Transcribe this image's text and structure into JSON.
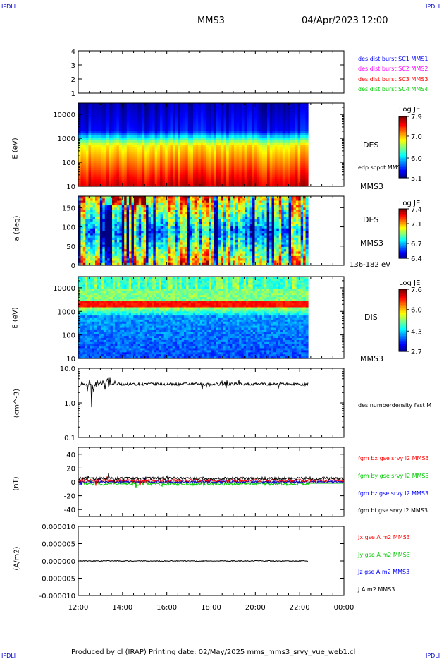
{
  "header": {
    "corner_tl": "IPDLI",
    "corner_tr": "IPDLI",
    "corner_bl": "IPDLI",
    "corner_br": "IPDLI",
    "spacecraft": "MMS3",
    "datetime": "04/Apr/2023 12:00"
  },
  "footer": {
    "produced": "Produced by cl (IRAP)   Printing date: 02/May/2025   mms_mms3_srvy_vue_web1.cl"
  },
  "colors": {
    "c1": "#0000ff",
    "c2": "#ff00ff",
    "c3": "#ff0000",
    "c4": "#00cc00",
    "bx": "#ff0000",
    "by": "#00cc00",
    "bz": "#0000ff",
    "bt": "#000000"
  },
  "chart_data": {
    "type": "multi-panel time series",
    "x_tick_labels": [
      "12:00",
      "14:00",
      "16:00",
      "18:00",
      "20:00",
      "22:00",
      "00:00"
    ],
    "data_end": "22:25",
    "panels": [
      {
        "id": "burst",
        "type": "line",
        "ylim": [
          1,
          4
        ],
        "ytick_labels": [
          "4",
          "3",
          "2",
          "1"
        ],
        "legend": [
          "des dist burst SC1 MMS1",
          "des dist burst SC2 MMS2",
          "des dist burst SC3 MMS3",
          "des dist burst SC4 MMS4"
        ]
      },
      {
        "id": "des_energy",
        "type": "heatmap",
        "ylabel": "E (eV)",
        "yscale": "log",
        "ylim": [
          10,
          30000
        ],
        "ytick_labels": [
          "10000",
          "1000",
          "100",
          "10"
        ],
        "side_labels": [
          "DES",
          "edp scpot MMS3",
          "MMS3"
        ],
        "colorbar": {
          "title": "Log JE",
          "ticks": [
            "7.9",
            "7.0",
            "6.0",
            "5.1"
          ],
          "range": [
            5.1,
            7.9
          ]
        }
      },
      {
        "id": "des_pitch",
        "type": "heatmap",
        "ylabel": "a (deg)",
        "ylim": [
          0,
          180
        ],
        "ytick_labels": [
          "150",
          "100",
          "50",
          "0"
        ],
        "side_labels": [
          "DES",
          "MMS3",
          "136-182 eV"
        ],
        "colorbar": {
          "title": "Log JE",
          "ticks": [
            "7.4",
            "7.1",
            "6.7",
            "6.4"
          ],
          "range": [
            6.4,
            7.4
          ]
        }
      },
      {
        "id": "dis_energy",
        "type": "heatmap",
        "ylabel": "E (eV)",
        "yscale": "log",
        "ylim": [
          10,
          30000
        ],
        "ytick_labels": [
          "10000",
          "1000",
          "100",
          "10"
        ],
        "side_labels": [
          "DIS",
          "MMS3"
        ],
        "colorbar": {
          "title": "Log JE",
          "ticks": [
            "7.6",
            "6.0",
            "4.3",
            "2.7"
          ],
          "range": [
            2.7,
            7.6
          ]
        }
      },
      {
        "id": "density",
        "type": "line",
        "ylabel": "(cm^-3)",
        "yscale": "log",
        "ylim": [
          0.1,
          10
        ],
        "ytick_labels": [
          "10.0",
          "1.0",
          "0.1"
        ],
        "series": [
          {
            "name": "des numberdensity fast M",
            "typical": 3.5
          }
        ]
      },
      {
        "id": "bfield",
        "type": "line",
        "ylabel": "(nT)",
        "ylim": [
          -50,
          50
        ],
        "ytick_labels": [
          "40",
          "20",
          "0",
          "-20",
          "-40"
        ],
        "series": [
          {
            "name": "fgm bx gse srvy l2 MMS3",
            "typical": 2
          },
          {
            "name": "fgm by gse srvy l2 MMS3",
            "typical": -3
          },
          {
            "name": "fgm bz gse srvy l2 MMS3",
            "typical": 0
          },
          {
            "name": "fgm bt gse srvy l2 MMS3",
            "typical": 4
          }
        ]
      },
      {
        "id": "current",
        "type": "line",
        "ylabel": "(A/m2)",
        "ylim": [
          -1e-05,
          1e-05
        ],
        "ytick_labels": [
          "0.000010",
          "0.000005",
          "0.000000",
          "-0.000005",
          "-0.000010"
        ],
        "series": [
          {
            "name": "Jx gse A m2 MMS3"
          },
          {
            "name": "Jy gse A m2 MMS3"
          },
          {
            "name": "Jz gse A m2 MMS3"
          },
          {
            "name": "J A m2 MMS3"
          }
        ]
      }
    ]
  }
}
